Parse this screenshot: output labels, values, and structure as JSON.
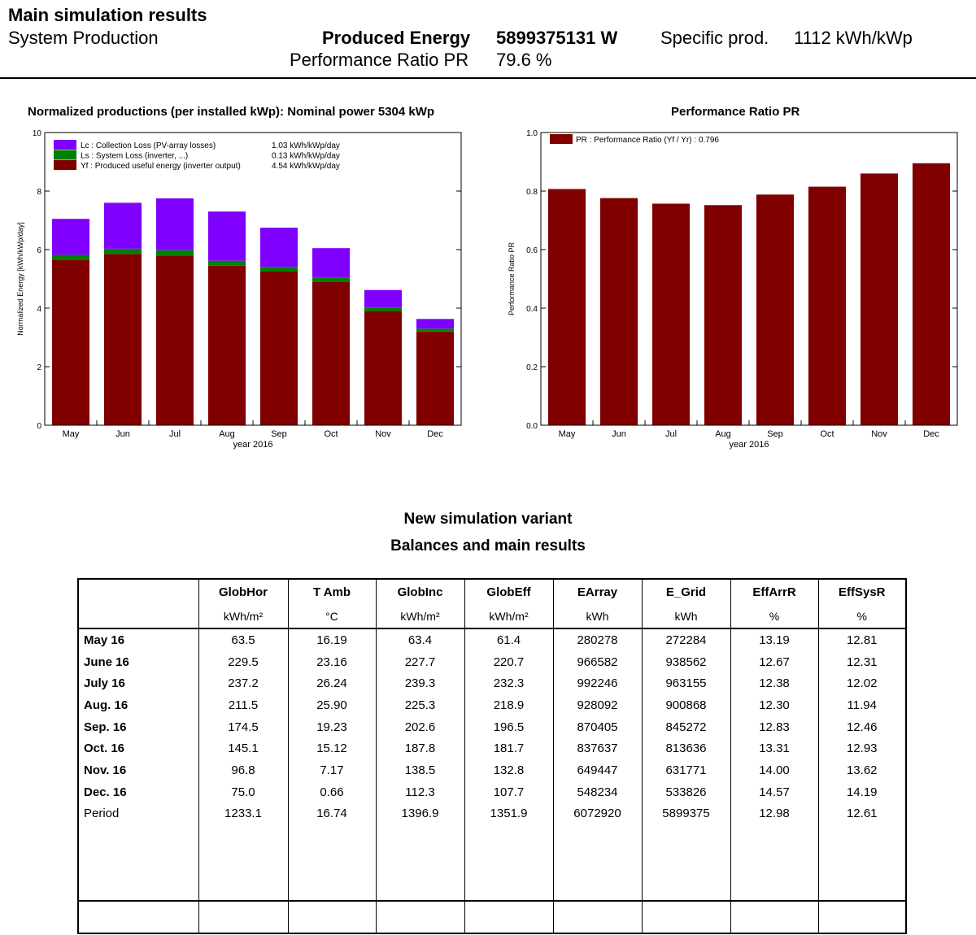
{
  "header": {
    "title": "Main simulation results",
    "subtitle": "System Production",
    "produced_energy_label": "Produced Energy",
    "produced_energy_value": "5899375131 W",
    "specific_prod_label": "Specific prod.",
    "specific_prod_value": "1112 kWh/kWp",
    "pr_label": "Performance Ratio PR",
    "pr_value": "79.6 %"
  },
  "colors": {
    "yf": "#800000",
    "ls": "#008000",
    "lc": "#8000ff"
  },
  "chart_data": [
    {
      "type": "bar",
      "stacked": true,
      "title": "Normalized productions (per installed kWp):  Nominal power 5304 kWp",
      "xlabel": "year 2016",
      "ylabel": "Normalized Energy [kWh/kWp/day]",
      "ylim": [
        0,
        10
      ],
      "yticks": [
        "0",
        "2",
        "4",
        "6",
        "8",
        "10"
      ],
      "categories": [
        "May",
        "Jun",
        "Jul",
        "Aug",
        "Sep",
        "Oct",
        "Nov",
        "Dec"
      ],
      "legend_position": "top-left",
      "series": [
        {
          "name": "Yf : Produced useful energy  (inverter output)",
          "legend_value": "4.54 kWh/kWp/day",
          "color": "#800000",
          "values": [
            5.65,
            5.85,
            5.8,
            5.45,
            5.25,
            4.9,
            3.9,
            3.2
          ]
        },
        {
          "name": "Ls : System Loss  (inverter, ...)",
          "legend_value": "0.13 kWh/kWp/day",
          "color": "#008000",
          "values": [
            0.17,
            0.18,
            0.18,
            0.17,
            0.16,
            0.15,
            0.12,
            0.1
          ]
        },
        {
          "name": "Lc : Collection Loss (PV-array losses)",
          "legend_value": "1.03 kWh/kWp/day",
          "color": "#8000ff",
          "values": [
            1.23,
            1.57,
            1.77,
            1.68,
            1.34,
            1.0,
            0.6,
            0.33
          ]
        }
      ]
    },
    {
      "type": "bar",
      "title": "Performance Ratio PR",
      "xlabel": "year 2016",
      "ylabel": "Performance Ratio PR",
      "ylim": [
        0,
        1
      ],
      "yticks": [
        "0.0",
        "0.2",
        "0.4",
        "0.6",
        "0.8",
        "1.0"
      ],
      "categories": [
        "May",
        "Jun",
        "Jul",
        "Aug",
        "Sep",
        "Oct",
        "Nov",
        "Dec"
      ],
      "legend_position": "top-left",
      "series": [
        {
          "name": "PR : Performance Ratio (Yf / Yr) :  0.796",
          "color": "#800000",
          "values": [
            0.807,
            0.776,
            0.757,
            0.752,
            0.788,
            0.815,
            0.86,
            0.895
          ]
        }
      ]
    }
  ],
  "section": {
    "title1": "New simulation variant",
    "title2": "Balances and main results"
  },
  "table": {
    "headers": [
      "",
      "GlobHor",
      "T Amb",
      "GlobInc",
      "GlobEff",
      "EArray",
      "E_Grid",
      "EffArrR",
      "EffSysR"
    ],
    "units": [
      "",
      "kWh/m²",
      "°C",
      "kWh/m²",
      "kWh/m²",
      "kWh",
      "kWh",
      "%",
      "%"
    ],
    "rows": [
      [
        "May  16",
        "63.5",
        "16.19",
        "63.4",
        "61.4",
        "280278",
        "272284",
        "13.19",
        "12.81"
      ],
      [
        "June  16",
        "229.5",
        "23.16",
        "227.7",
        "220.7",
        "966582",
        "938562",
        "12.67",
        "12.31"
      ],
      [
        "July  16",
        "237.2",
        "26.24",
        "239.3",
        "232.3",
        "992246",
        "963155",
        "12.38",
        "12.02"
      ],
      [
        "Aug.  16",
        "211.5",
        "25.90",
        "225.3",
        "218.9",
        "928092",
        "900868",
        "12.30",
        "11.94"
      ],
      [
        "Sep.  16",
        "174.5",
        "19.23",
        "202.6",
        "196.5",
        "870405",
        "845272",
        "12.83",
        "12.46"
      ],
      [
        "Oct.  16",
        "145.1",
        "15.12",
        "187.8",
        "181.7",
        "837637",
        "813636",
        "13.31",
        "12.93"
      ],
      [
        "Nov.  16",
        "96.8",
        "7.17",
        "138.5",
        "132.8",
        "649447",
        "631771",
        "14.00",
        "13.62"
      ],
      [
        "Dec.  16",
        "75.0",
        "0.66",
        "112.3",
        "107.7",
        "548234",
        "533826",
        "14.57",
        "14.19"
      ]
    ],
    "period": [
      "Period",
      "1233.1",
      "16.74",
      "1396.9",
      "1351.9",
      "6072920",
      "5899375",
      "12.98",
      "12.61"
    ]
  }
}
